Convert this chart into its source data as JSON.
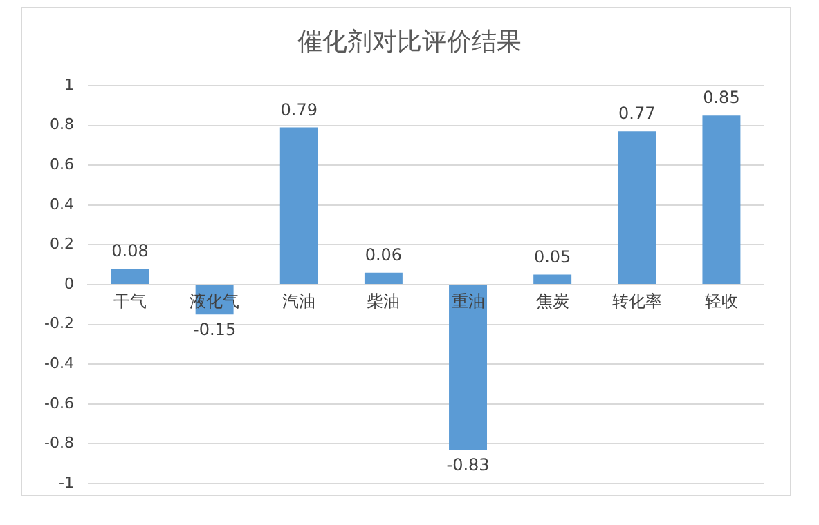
{
  "chart_data": {
    "type": "bar",
    "title": "催化剂对比评价结果",
    "categories": [
      "干气",
      "液化气",
      "汽油",
      "柴油",
      "重油",
      "焦炭",
      "转化率",
      "轻收"
    ],
    "values": [
      0.08,
      -0.15,
      0.79,
      0.06,
      -0.83,
      0.05,
      0.77,
      0.85
    ],
    "color": "#5b9bd5",
    "ylim": [
      -1,
      1
    ],
    "yticks": [
      -1,
      -0.8,
      -0.6,
      -0.4,
      -0.2,
      0,
      0.2,
      0.4,
      0.6,
      0.8,
      1
    ],
    "grid": "y",
    "data_labels": true,
    "legend": false
  }
}
